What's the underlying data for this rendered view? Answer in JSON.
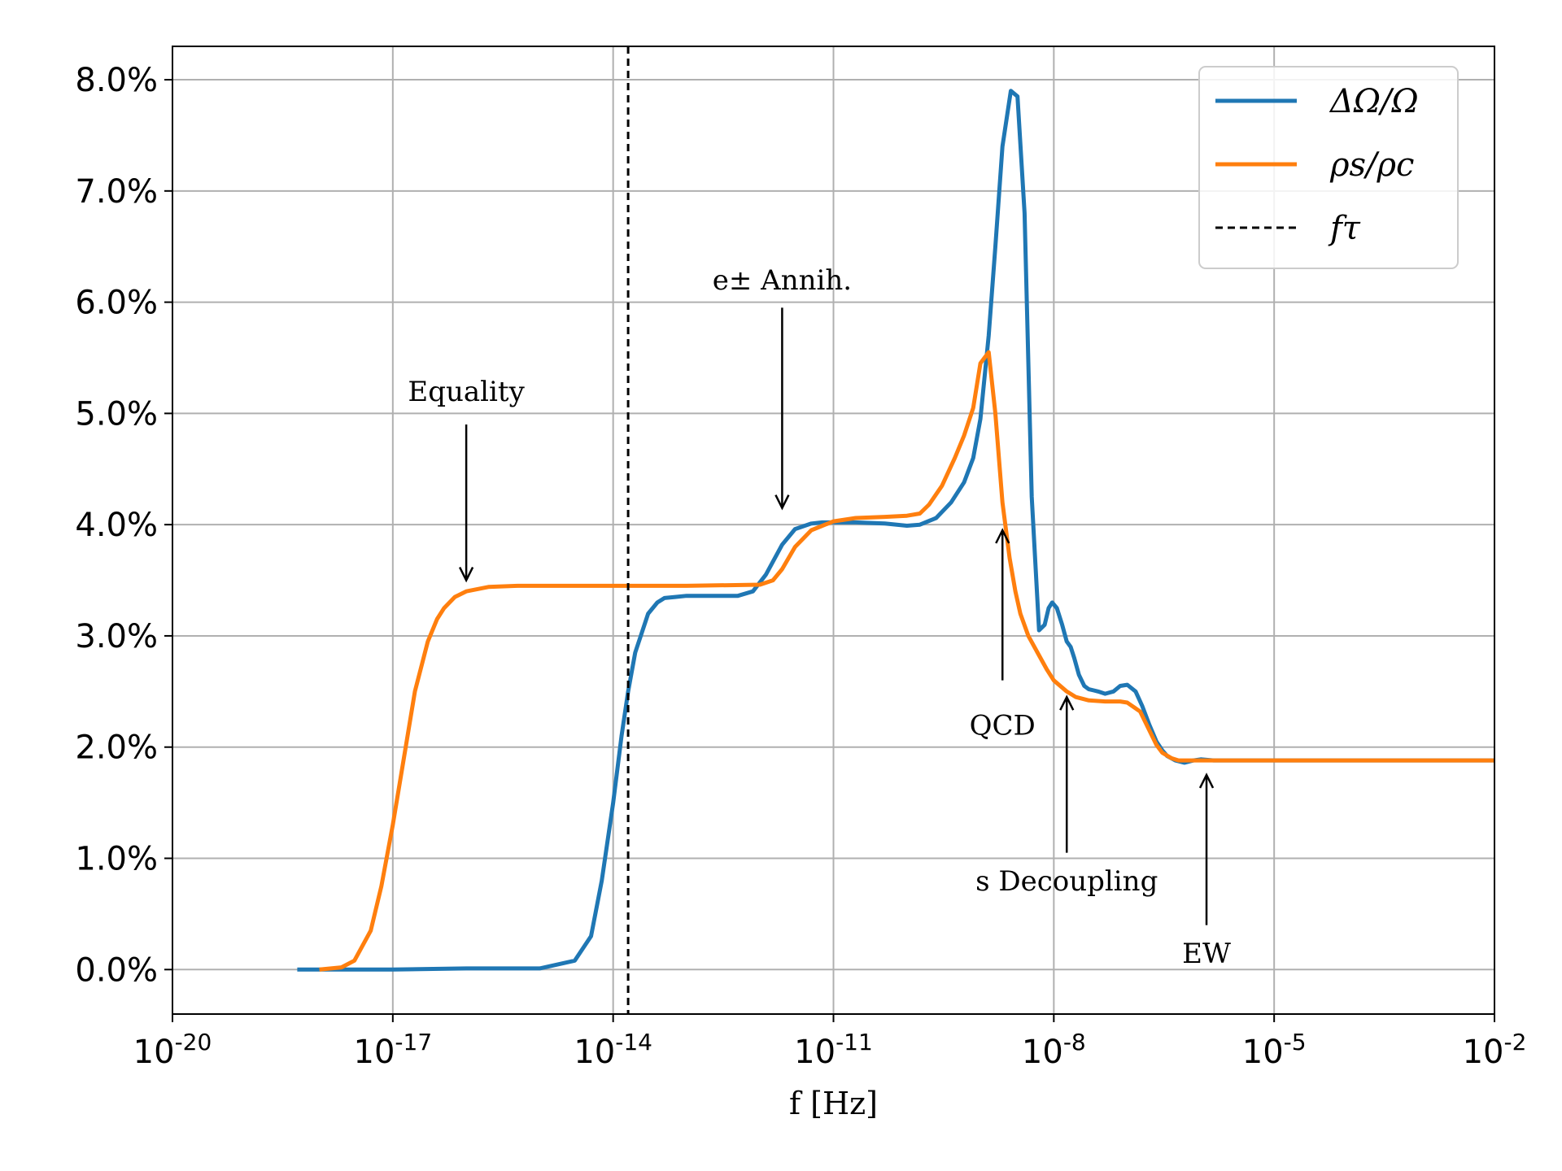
{
  "chart_data": {
    "type": "line",
    "xlabel": "f [Hz]",
    "ylabel": "",
    "x_scale": "log",
    "xlim": [
      1e-20,
      0.01
    ],
    "ylim": [
      -0.4,
      8.3
    ],
    "x_ticks": [
      {
        "value": 1e-20,
        "base": "10",
        "exp": "-20"
      },
      {
        "value": 1e-17,
        "base": "10",
        "exp": "-17"
      },
      {
        "value": 1e-14,
        "base": "10",
        "exp": "-14"
      },
      {
        "value": 1e-11,
        "base": "10",
        "exp": "-11"
      },
      {
        "value": 1e-08,
        "base": "10",
        "exp": "-8"
      },
      {
        "value": 1e-05,
        "base": "10",
        "exp": "-5"
      },
      {
        "value": 0.01,
        "base": "10",
        "exp": "-2"
      }
    ],
    "y_ticks": [
      {
        "value": 0,
        "label": "0.0%"
      },
      {
        "value": 1,
        "label": "1.0%"
      },
      {
        "value": 2,
        "label": "2.0%"
      },
      {
        "value": 3,
        "label": "3.0%"
      },
      {
        "value": 4,
        "label": "4.0%"
      },
      {
        "value": 5,
        "label": "5.0%"
      },
      {
        "value": 6,
        "label": "6.0%"
      },
      {
        "value": 7,
        "label": "7.0%"
      },
      {
        "value": 8,
        "label": "8.0%"
      }
    ],
    "grid": true,
    "legend_position": "top-right",
    "series": [
      {
        "name": "ΔΩ/Ω",
        "color": "#1f77b4",
        "style": "solid",
        "x": [
          5e-19,
          1e-18,
          1e-17,
          1e-16,
          1e-15,
          3e-15,
          5e-15,
          7e-15,
          1e-14,
          1.3e-14,
          1.6e-14,
          2e-14,
          3e-14,
          4e-14,
          5e-14,
          7e-14,
          1e-13,
          2e-13,
          5e-13,
          8e-13,
          1.2e-12,
          2e-12,
          3e-12,
          5e-12,
          7e-12,
          1e-11,
          2e-11,
          5e-11,
          1e-10,
          1.5e-10,
          2.5e-10,
          4e-10,
          6e-10,
          8e-10,
          1e-09,
          1.3e-09,
          1.6e-09,
          2e-09,
          2.6e-09,
          3.2e-09,
          4e-09,
          5e-09,
          6.3e-09,
          7.5e-09,
          8.5e-09,
          9.5e-09,
          1.1e-08,
          1.3e-08,
          1.5e-08,
          1.7e-08,
          1.9e-08,
          2.2e-08,
          2.6e-08,
          3e-08,
          3.5e-08,
          4e-08,
          5e-08,
          6.5e-08,
          8e-08,
          1e-07,
          1.3e-07,
          1.6e-07,
          2e-07,
          2.5e-07,
          3e-07,
          3.5e-07,
          4.5e-07,
          6e-07,
          8e-07,
          1e-06,
          1.5e-06,
          2.5e-06,
          5e-06,
          1e-05,
          1.5e-05,
          2e-05,
          5e-05,
          0.0001,
          0.001,
          0.01
        ],
        "values": [
          0.0,
          0.0,
          0.0,
          0.01,
          0.01,
          0.08,
          0.3,
          0.8,
          1.5,
          2.1,
          2.5,
          2.85,
          3.2,
          3.3,
          3.34,
          3.35,
          3.36,
          3.36,
          3.36,
          3.4,
          3.55,
          3.82,
          3.96,
          4.01,
          4.02,
          4.02,
          4.02,
          4.01,
          3.99,
          4.0,
          4.06,
          4.2,
          4.38,
          4.6,
          4.95,
          5.7,
          6.5,
          7.4,
          7.9,
          7.85,
          6.8,
          4.25,
          3.05,
          3.1,
          3.25,
          3.3,
          3.25,
          3.1,
          2.95,
          2.9,
          2.8,
          2.65,
          2.55,
          2.52,
          2.51,
          2.5,
          2.48,
          2.5,
          2.55,
          2.56,
          2.5,
          2.37,
          2.2,
          2.05,
          1.97,
          1.92,
          1.88,
          1.86,
          1.88,
          1.89,
          1.88,
          1.88,
          1.88,
          1.88,
          1.88,
          1.88,
          1.88,
          1.88,
          1.88,
          1.88
        ]
      },
      {
        "name": "ρs/ρc",
        "color": "#ff7f0e",
        "style": "solid",
        "x": [
          1e-18,
          2e-18,
          3e-18,
          5e-18,
          7e-18,
          1e-17,
          1.5e-17,
          2e-17,
          3e-17,
          4e-17,
          5e-17,
          7e-17,
          1e-16,
          2e-16,
          5e-16,
          1e-15,
          1e-14,
          1e-13,
          1e-12,
          1.5e-12,
          2e-12,
          3e-12,
          5e-12,
          1e-11,
          2e-11,
          5e-11,
          1e-10,
          1.5e-10,
          2e-10,
          3e-10,
          4.5e-10,
          6e-10,
          8e-10,
          1e-09,
          1.3e-09,
          1.6e-09,
          2e-09,
          2.5e-09,
          3e-09,
          3.5e-09,
          4.5e-09,
          6e-09,
          8e-09,
          1e-08,
          1.5e-08,
          2e-08,
          3e-08,
          5e-08,
          8e-08,
          1e-07,
          1.5e-07,
          2e-07,
          2.5e-07,
          3e-07,
          4e-07,
          5e-07,
          7e-07,
          1e-06,
          1e-05,
          0.0001,
          0.001,
          0.01
        ],
        "values": [
          0.0,
          0.02,
          0.08,
          0.35,
          0.75,
          1.3,
          2.0,
          2.5,
          2.95,
          3.15,
          3.25,
          3.35,
          3.4,
          3.44,
          3.45,
          3.45,
          3.45,
          3.45,
          3.46,
          3.5,
          3.6,
          3.8,
          3.95,
          4.03,
          4.06,
          4.07,
          4.08,
          4.1,
          4.18,
          4.35,
          4.6,
          4.8,
          5.05,
          5.45,
          5.55,
          5.0,
          4.2,
          3.7,
          3.4,
          3.2,
          3.0,
          2.85,
          2.7,
          2.6,
          2.5,
          2.45,
          2.42,
          2.41,
          2.41,
          2.4,
          2.32,
          2.15,
          2.02,
          1.95,
          1.9,
          1.88,
          1.88,
          1.88,
          1.88,
          1.88,
          1.88,
          1.88
        ]
      },
      {
        "name": "fτ",
        "color": "#000000",
        "style": "dashed",
        "x_value": 1.6e-14
      }
    ],
    "annotations": [
      {
        "text": "Equality",
        "x": 1e-16,
        "y_text": 5.2,
        "arrow_from": 4.9,
        "arrow_to": 3.5,
        "direction": "down"
      },
      {
        "text": "e± Annih.",
        "x": 2e-12,
        "y_text": 6.2,
        "arrow_from": 5.95,
        "arrow_to": 4.15,
        "direction": "down"
      },
      {
        "text": "QCD",
        "x": 2e-09,
        "y_text": 2.2,
        "arrow_from": 2.6,
        "arrow_to": 3.95,
        "direction": "up"
      },
      {
        "text": "s Decoupling",
        "x": 1.5e-08,
        "y_text": 0.8,
        "arrow_from": 1.05,
        "arrow_to": 2.45,
        "direction": "up"
      },
      {
        "text": "EW",
        "x": 1.2e-06,
        "y_text": 0.15,
        "arrow_from": 0.4,
        "arrow_to": 1.75,
        "direction": "up"
      }
    ]
  }
}
